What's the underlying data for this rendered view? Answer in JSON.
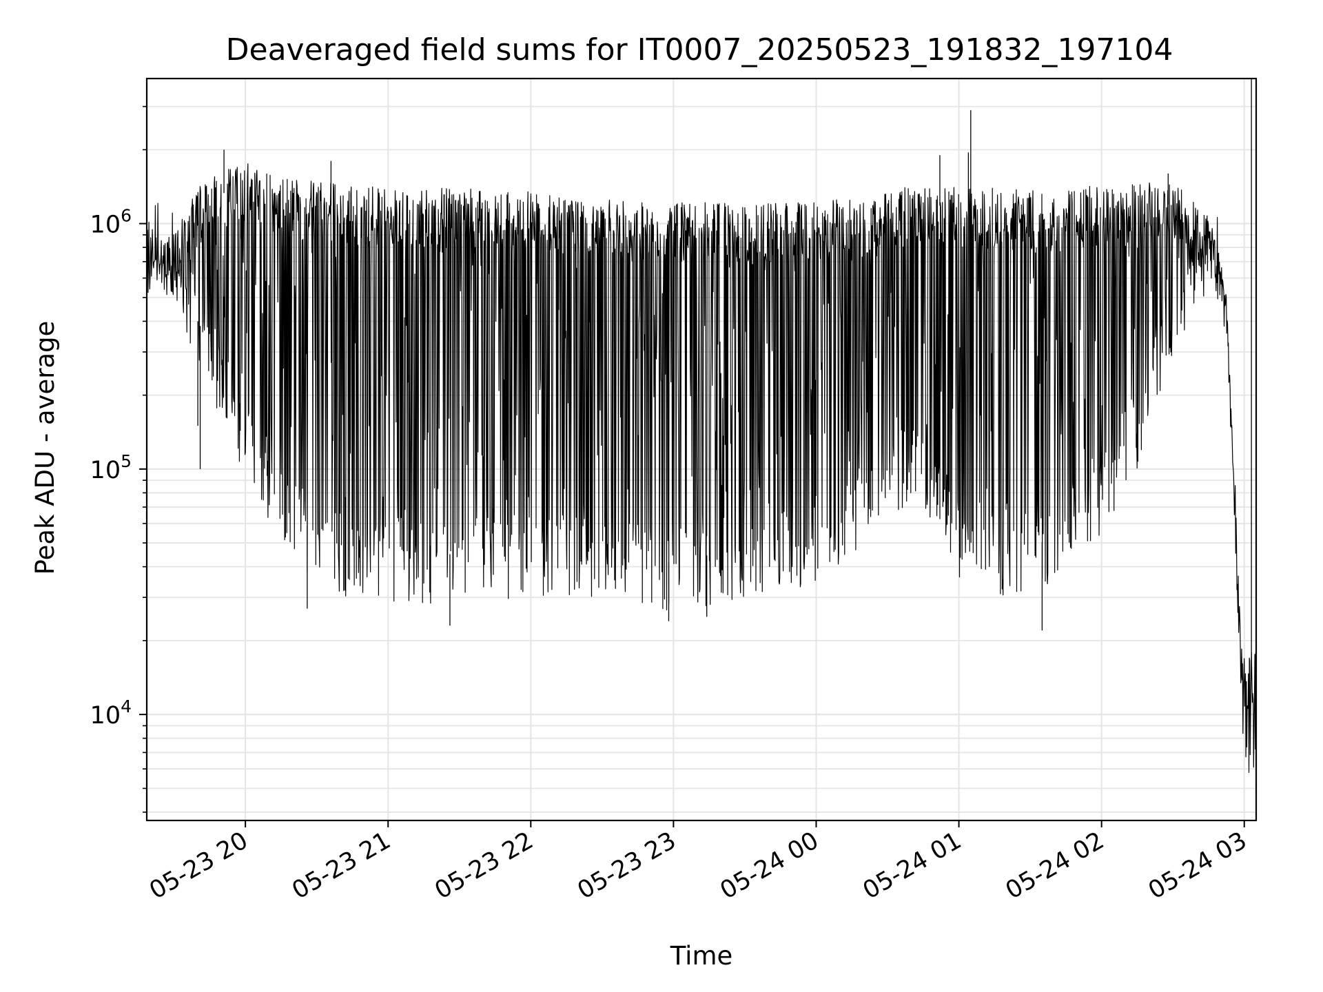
{
  "chart_data": {
    "type": "line",
    "title": "Deaveraged field sums for IT0007_20250523_191832_197104",
    "xlabel": "Time",
    "ylabel": "Peak ADU - average",
    "yscale": "log",
    "ylim": [
      3700,
      3900000
    ],
    "xlim": [
      "2025-05-23 19:18:32",
      "2025-05-24 03:05:00"
    ],
    "grid": true,
    "legend": "none",
    "line_color": "#000000",
    "grid_color": "#e5e5e5",
    "x_ticks": [
      {
        "t": "2025-05-23 20:00",
        "label": "05-23 20"
      },
      {
        "t": "2025-05-23 21:00",
        "label": "05-23 21"
      },
      {
        "t": "2025-05-23 22:00",
        "label": "05-23 22"
      },
      {
        "t": "2025-05-23 23:00",
        "label": "05-23 23"
      },
      {
        "t": "2025-05-24 00:00",
        "label": "05-24 00"
      },
      {
        "t": "2025-05-24 01:00",
        "label": "05-24 01"
      },
      {
        "t": "2025-05-24 02:00",
        "label": "05-24 02"
      },
      {
        "t": "2025-05-24 03:00",
        "label": "05-24 03"
      }
    ],
    "y_ticks": [
      {
        "value": 10000,
        "base": "10",
        "exp": "4"
      },
      {
        "value": 100000,
        "base": "10",
        "exp": "5"
      },
      {
        "value": 1000000,
        "base": "10",
        "exp": "6"
      }
    ],
    "series": [
      {
        "envelope": [
          {
            "t": "2025-05-23 19:18",
            "upper": 800000,
            "lower": 620000
          },
          {
            "t": "2025-05-23 19:30",
            "upper": 900000,
            "lower": 520000
          },
          {
            "t": "2025-05-23 19:40",
            "upper": 1400000,
            "lower": 250000
          },
          {
            "t": "2025-05-23 19:50",
            "upper": 1650000,
            "lower": 160000
          },
          {
            "t": "2025-05-23 20:00",
            "upper": 1800000,
            "lower": 90000
          },
          {
            "t": "2025-05-23 20:10",
            "upper": 1600000,
            "lower": 60000
          },
          {
            "t": "2025-05-23 20:20",
            "upper": 1500000,
            "lower": 45000
          },
          {
            "t": "2025-05-23 20:30",
            "upper": 1500000,
            "lower": 32000
          },
          {
            "t": "2025-05-23 20:45",
            "upper": 1450000,
            "lower": 29000
          },
          {
            "t": "2025-05-23 21:00",
            "upper": 1400000,
            "lower": 29000
          },
          {
            "t": "2025-05-23 21:30",
            "upper": 1400000,
            "lower": 28000
          },
          {
            "t": "2025-05-23 22:00",
            "upper": 1350000,
            "lower": 30000
          },
          {
            "t": "2025-05-23 22:30",
            "upper": 1250000,
            "lower": 29000
          },
          {
            "t": "2025-05-23 23:00",
            "upper": 1250000,
            "lower": 26000
          },
          {
            "t": "2025-05-23 23:30",
            "upper": 1200000,
            "lower": 30000
          },
          {
            "t": "2025-05-24 00:00",
            "upper": 1250000,
            "lower": 34000
          },
          {
            "t": "2025-05-24 00:20",
            "upper": 1250000,
            "lower": 50000
          },
          {
            "t": "2025-05-24 00:40",
            "upper": 1450000,
            "lower": 70000
          },
          {
            "t": "2025-05-24 00:50",
            "upper": 1500000,
            "lower": 60000
          },
          {
            "t": "2025-05-24 01:00",
            "upper": 1400000,
            "lower": 36000
          },
          {
            "t": "2025-05-24 01:20",
            "upper": 1400000,
            "lower": 30000
          },
          {
            "t": "2025-05-24 01:40",
            "upper": 1350000,
            "lower": 32000
          },
          {
            "t": "2025-05-24 02:00",
            "upper": 1450000,
            "lower": 55000
          },
          {
            "t": "2025-05-24 02:15",
            "upper": 1450000,
            "lower": 100000
          },
          {
            "t": "2025-05-24 02:30",
            "upper": 1500000,
            "lower": 300000
          },
          {
            "t": "2025-05-24 02:45",
            "upper": 1100000,
            "lower": 550000
          },
          {
            "t": "2025-05-24 02:52",
            "upper": 650000,
            "lower": 450000
          },
          {
            "t": "2025-05-24 02:55",
            "upper": 150000,
            "lower": 100000
          },
          {
            "t": "2025-05-24 02:58",
            "upper": 30000,
            "lower": 15000
          },
          {
            "t": "2025-05-24 03:00",
            "upper": 18000,
            "lower": 6000
          },
          {
            "t": "2025-05-24 03:05",
            "upper": 20000,
            "lower": 5000
          }
        ],
        "spikes": [
          {
            "t": "2025-05-23 19:51",
            "value": 2000000
          },
          {
            "t": "2025-05-23 20:36",
            "value": 1800000
          },
          {
            "t": "2025-05-24 00:52",
            "value": 1900000
          },
          {
            "t": "2025-05-24 01:05",
            "value": 2900000
          },
          {
            "t": "2025-05-24 01:04",
            "value": 1950000
          },
          {
            "t": "2025-05-24 02:28",
            "value": 1600000
          },
          {
            "t": "2025-05-24 01:35",
            "value": 22000
          },
          {
            "t": "2025-05-23 21:26",
            "value": 23000
          },
          {
            "t": "2025-05-23 22:58",
            "value": 24000
          },
          {
            "t": "2025-05-23 23:14",
            "value": 25000
          },
          {
            "t": "2025-05-23 19:41",
            "value": 100000
          },
          {
            "t": "2025-05-23 19:40",
            "value": 150000
          },
          {
            "t": "2025-05-23 20:26",
            "value": 27000
          },
          {
            "t": "2025-05-24 03:03",
            "value": 4800000
          }
        ]
      }
    ]
  }
}
